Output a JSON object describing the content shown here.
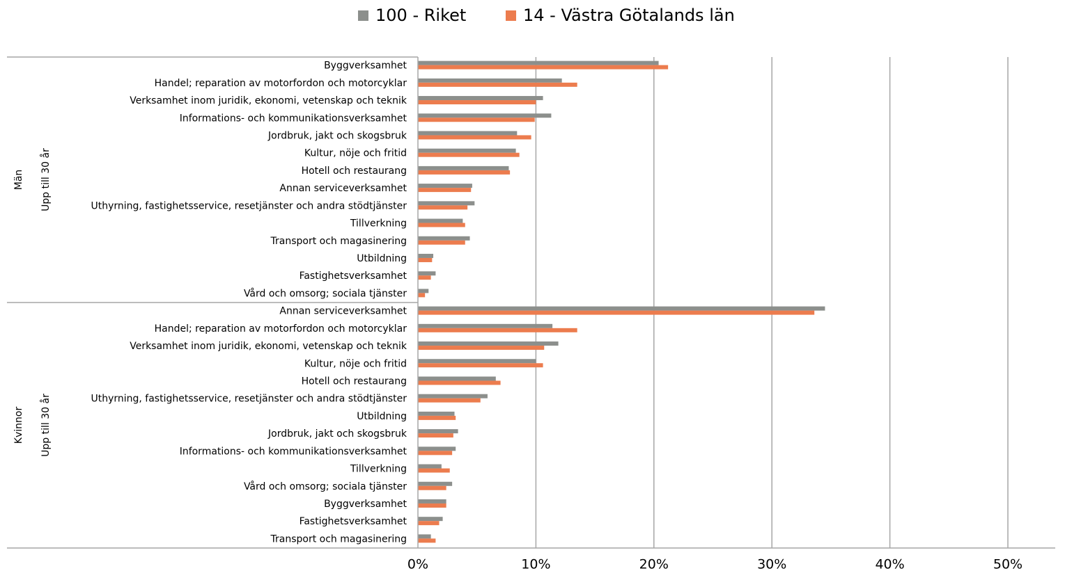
{
  "chart_data": {
    "type": "bar",
    "orientation": "horizontal",
    "series": [
      {
        "name": "100 - Riket",
        "color": "#8c8f8c",
        "values": [
          [
            20.4,
            12.2,
            10.6,
            11.3,
            8.4,
            8.3,
            7.7,
            4.6,
            4.8,
            3.8,
            4.4,
            1.3,
            1.5,
            0.9
          ],
          [
            34.5,
            11.4,
            11.9,
            10.0,
            6.6,
            5.9,
            3.1,
            3.4,
            3.2,
            2.0,
            2.9,
            2.4,
            2.1,
            1.1
          ]
        ]
      },
      {
        "name": "14 - Västra Götalands län",
        "color": "#ec7c4e",
        "values": [
          [
            21.2,
            13.5,
            10.0,
            9.9,
            9.6,
            8.6,
            7.8,
            4.5,
            4.2,
            4.0,
            4.0,
            1.2,
            1.1,
            0.6
          ],
          [
            33.6,
            13.5,
            10.7,
            10.6,
            7.0,
            5.3,
            3.2,
            3.0,
            2.9,
            2.7,
            2.4,
            2.4,
            1.8,
            1.5
          ]
        ]
      }
    ],
    "groups": [
      {
        "label": "Män",
        "sublabel": "Upp till 30 år",
        "categories": [
          "Byggverksamhet",
          "Handel; reparation av motorfordon och motorcyklar",
          "Verksamhet inom juridik, ekonomi, vetenskap och teknik",
          "Informations- och kommunikationsverksamhet",
          "Jordbruk, jakt och skogsbruk",
          "Kultur, nöje och fritid",
          "Hotell och restaurang",
          "Annan serviceverksamhet",
          "Uthyrning, fastighetsservice, resetjänster och andra stödtjänster",
          "Tillverkning",
          "Transport och magasinering",
          "Utbildning",
          "Fastighetsverksamhet",
          "Vård och omsorg; sociala tjänster"
        ]
      },
      {
        "label": "Kvinnor",
        "sublabel": "Upp till 30 år",
        "categories": [
          "Annan serviceverksamhet",
          "Handel; reparation av motorfordon och motorcyklar",
          "Verksamhet inom juridik, ekonomi, vetenskap och teknik",
          "Kultur, nöje och fritid",
          "Hotell och restaurang",
          "Uthyrning, fastighetsservice, resetjänster och andra stödtjänster",
          "Utbildning",
          "Jordbruk, jakt och skogsbruk",
          "Informations- och kommunikationsverksamhet",
          "Tillverkning",
          "Vård och omsorg; sociala tjänster",
          "Byggverksamhet",
          "Fastighetsverksamhet",
          "Transport och magasinering"
        ]
      }
    ],
    "xlim": [
      0,
      50
    ],
    "xticks": [
      {
        "value": 0,
        "label": "0%"
      },
      {
        "value": 10,
        "label": "10%"
      },
      {
        "value": 20,
        "label": "20%"
      },
      {
        "value": 30,
        "label": "30%"
      },
      {
        "value": 40,
        "label": "40%"
      },
      {
        "value": 50,
        "label": "50%"
      }
    ],
    "grid": true,
    "legend": "top"
  }
}
